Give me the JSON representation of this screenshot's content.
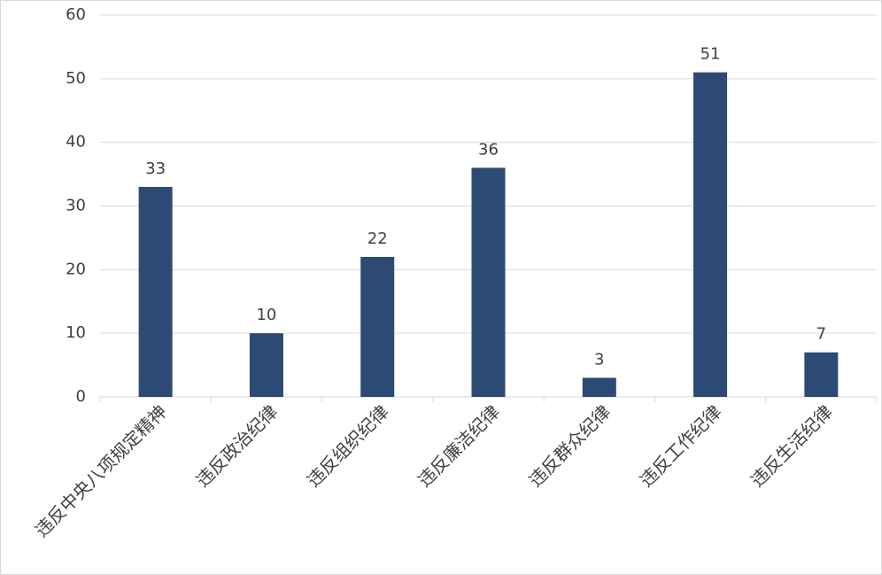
{
  "chart_data": {
    "type": "bar",
    "categories": [
      "违反中央八项规定精神",
      "违反政治纪律",
      "违反组织纪律",
      "违反廉洁纪律",
      "违反群众纪律",
      "违反工作纪律",
      "违反生活纪律"
    ],
    "values": [
      33,
      10,
      22,
      36,
      3,
      51,
      7
    ],
    "color": "#2c4a73",
    "ylim": [
      0,
      60
    ],
    "yticks": [
      0,
      10,
      20,
      30,
      40,
      50,
      60
    ],
    "grid": true,
    "data_labels": true
  }
}
